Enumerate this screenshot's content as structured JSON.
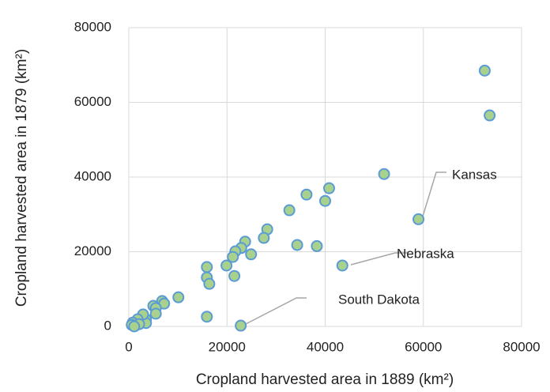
{
  "chart_data": {
    "type": "scatter",
    "x_label": "Cropland harvested area in 1889 (km²)",
    "y_label": "Cropland harvested area in 1879 (km²)",
    "xlim": [
      0,
      80000
    ],
    "xticks": [
      0,
      20000,
      40000,
      60000,
      80000
    ],
    "ylim": [
      0,
      80000
    ],
    "yticks": [
      0,
      20000,
      40000,
      60000,
      80000
    ],
    "grid": true,
    "series": [
      {
        "color": "#a9d18e",
        "x": [
          72500,
          73500,
          52000,
          59000,
          43500,
          22800,
          40800,
          40000,
          36200,
          32700,
          28200,
          27500,
          23700,
          22900,
          21700,
          21200,
          24900,
          21500,
          19900,
          34300,
          38300,
          15900,
          15900,
          16400,
          15900,
          10100,
          6800,
          7200,
          5000,
          5500,
          5500,
          3500,
          3500,
          2900,
          1800,
          800,
          600,
          1300,
          2100,
          1100
        ],
        "values": [
          68500,
          56500,
          40800,
          28700,
          16300,
          200,
          37000,
          33600,
          35300,
          31100,
          26000,
          23700,
          22700,
          21000,
          20100,
          18600,
          19300,
          13500,
          16300,
          21800,
          21500,
          15900,
          13100,
          11400,
          2600,
          7800,
          6800,
          6100,
          5500,
          4900,
          3400,
          1900,
          900,
          3200,
          1900,
          1000,
          400,
          200,
          600,
          0
        ]
      }
    ],
    "annotations": [
      "Kansas",
      "Nebraska",
      "South Dakota"
    ]
  }
}
